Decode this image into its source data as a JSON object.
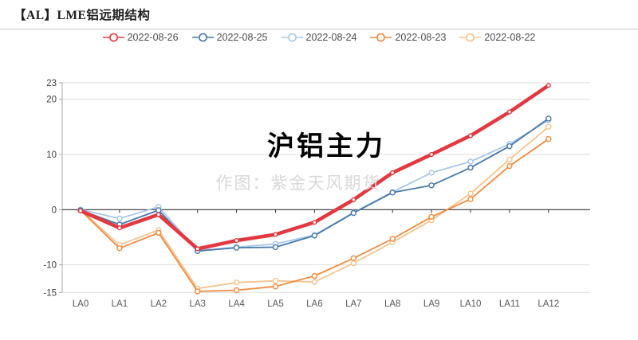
{
  "header": {
    "title": "【AL】LME铝远期结构"
  },
  "watermarks": {
    "main": "沪铝主力",
    "credit": "作图：紫金天风期货"
  },
  "colors": {
    "axis_zero_line": "#333333",
    "grid_line": "#dddddd",
    "axis_line": "#aaaaaa",
    "tick_label": "#404040",
    "x_label": "#595959",
    "divider": "#c9c9c9"
  },
  "chart_data": {
    "type": "line",
    "title": "【AL】LME铝远期结构",
    "categories": [
      "LA0",
      "LA1",
      "LA2",
      "LA3",
      "LA4",
      "LA5",
      "LA6",
      "LA7",
      "LA8",
      "LA9",
      "LA10",
      "LA11",
      "LA12"
    ],
    "series": [
      {
        "name": "2022-08-26",
        "color": "#e2383f",
        "line_width": 4.5,
        "values": [
          -0.2,
          -3.3,
          -0.9,
          -7.1,
          -5.6,
          -4.5,
          -2.3,
          1.8,
          6.7,
          10.0,
          13.4,
          17.7,
          22.5
        ]
      },
      {
        "name": "2022-08-25",
        "color": "#4879a8",
        "line_width": 1.8,
        "values": [
          -0.1,
          -2.7,
          -0.1,
          -7.5,
          -6.9,
          -6.8,
          -4.7,
          -0.6,
          3.1,
          4.4,
          7.6,
          11.5,
          16.5
        ]
      },
      {
        "name": "2022-08-24",
        "color": "#a8c8e8",
        "line_width": 1.8,
        "values": [
          0,
          -1.6,
          0.5,
          -7.4,
          -6.8,
          -6.2,
          -4.6,
          -0.5,
          3.2,
          6.7,
          8.7,
          11.9,
          16.2
        ]
      },
      {
        "name": "2022-08-23",
        "color": "#ee8b3e",
        "line_width": 1.8,
        "values": [
          -0.1,
          -7.0,
          -4.2,
          -14.8,
          -14.6,
          -13.9,
          -12.0,
          -8.8,
          -5.3,
          -1.3,
          1.9,
          7.9,
          12.8
        ]
      },
      {
        "name": "2022-08-22",
        "color": "#f6c38e",
        "line_width": 1.8,
        "values": [
          0,
          -6.4,
          -3.7,
          -14.3,
          -13.2,
          -12.9,
          -13.1,
          -9.7,
          -5.9,
          -1.9,
          2.9,
          9.1,
          15.0
        ]
      }
    ],
    "xlabel": "",
    "ylabel": "",
    "y_ticks": [
      23,
      20,
      10,
      0,
      -10,
      -15
    ],
    "ylim": [
      -15,
      23
    ],
    "grid": true,
    "legend_position": "top",
    "marker": "open-circle"
  }
}
